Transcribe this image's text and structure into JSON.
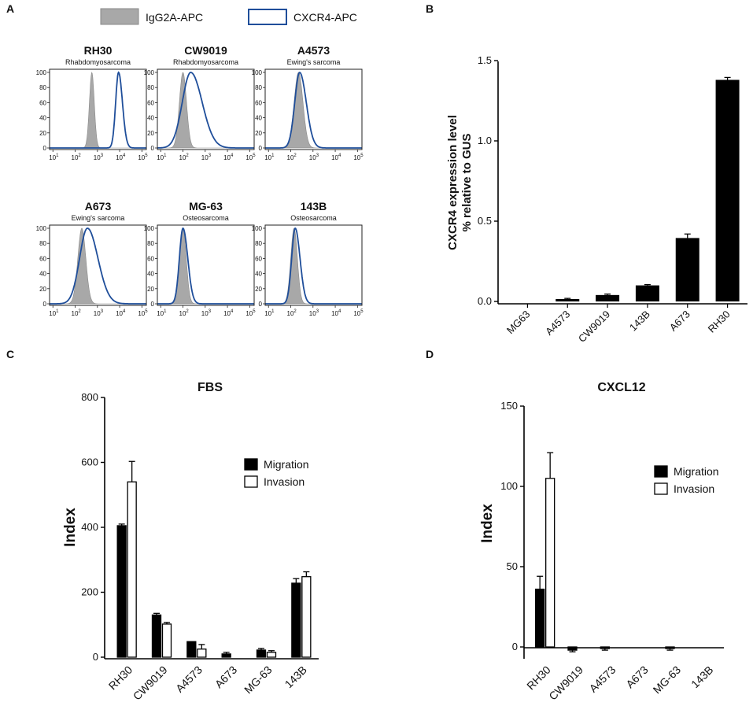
{
  "panel_letters": [
    "A",
    "B",
    "C",
    "D"
  ],
  "colors": {
    "isotype": "#a8a8a8",
    "cxcr4": "#1f4e9a",
    "bar_dark": "#000000",
    "bar_light": "#ffffff"
  },
  "panelA": {
    "legend": [
      {
        "label": "IgG2A-APC",
        "style": "filled-grey"
      },
      {
        "label": "CXCR4-APC",
        "style": "outline-blue"
      }
    ],
    "y_ticks": [
      "0",
      "20",
      "40",
      "60",
      "80",
      "100"
    ],
    "x_tick_base": "10",
    "x_tick_exps": [
      "1",
      "2",
      "3",
      "4",
      "5"
    ],
    "histograms": [
      {
        "title": "RH30",
        "subtitle": "Rhabdomyosarcoma",
        "iso_peak": 2.75,
        "iso_width": 0.11,
        "cx_peak": 3.95,
        "cx_width": 0.13
      },
      {
        "title": "CW9019",
        "subtitle": "Rhabdomyosarcoma",
        "iso_peak": 2.0,
        "iso_width": 0.16,
        "cx_peak": 2.35,
        "cx_width": 0.38
      },
      {
        "title": "A4573",
        "subtitle": "Ewing's sarcoma",
        "iso_peak": 2.35,
        "iso_width": 0.2,
        "cx_peak": 2.4,
        "cx_width": 0.22
      },
      {
        "title": "A673",
        "subtitle": "Ewing's sarcoma",
        "iso_peak": 2.3,
        "iso_width": 0.18,
        "cx_peak": 2.55,
        "cx_width": 0.35
      },
      {
        "title": "MG-63",
        "subtitle": "Osteosarcoma",
        "iso_peak": 2.0,
        "iso_width": 0.15,
        "cx_peak": 2.0,
        "cx_width": 0.16
      },
      {
        "title": "143B",
        "subtitle": "Osteosarcoma",
        "iso_peak": 2.15,
        "iso_width": 0.15,
        "cx_peak": 2.2,
        "cx_width": 0.16
      }
    ]
  },
  "chart_data": [
    {
      "panel": "B",
      "type": "bar",
      "title": "",
      "ylabel_lines": [
        "CXCR4 expression level",
        "% relative to GUS"
      ],
      "categories": [
        "MG63",
        "A4573",
        "CW9019",
        "143B",
        "A673",
        "RH30"
      ],
      "values": [
        0.0,
        0.015,
        0.04,
        0.1,
        0.395,
        1.38
      ],
      "errors": [
        0.0,
        0.004,
        0.006,
        0.005,
        0.025,
        0.015
      ],
      "ylim": [
        0,
        1.5
      ],
      "yticks": [
        "0.0",
        "0.5",
        "1.0",
        "1.5"
      ]
    },
    {
      "panel": "C",
      "type": "bar",
      "title": "FBS",
      "ylabel": "Index",
      "categories": [
        "RH30",
        "CW9019",
        "A4573",
        "A673",
        "MG-63",
        "143B"
      ],
      "series": [
        {
          "name": "Migration",
          "values": [
            405,
            130,
            48,
            10,
            22,
            228
          ],
          "errors": [
            5,
            5,
            0,
            5,
            5,
            14
          ]
        },
        {
          "name": "Invasion",
          "values": [
            540,
            102,
            25,
            0,
            15,
            248
          ],
          "errors": [
            63,
            5,
            14,
            0,
            5,
            15
          ]
        }
      ],
      "ylim": [
        0,
        800
      ],
      "yticks": [
        "0",
        "200",
        "400",
        "600",
        "800"
      ]
    },
    {
      "panel": "D",
      "type": "bar",
      "title": "CXCL12",
      "ylabel": "Index",
      "categories": [
        "RH30",
        "CW9019",
        "A4573",
        "A673",
        "MG-63",
        "143B"
      ],
      "series": [
        {
          "name": "Migration",
          "values": [
            36,
            -2,
            -1,
            0,
            -1,
            0
          ],
          "errors": [
            8,
            1,
            1,
            0,
            1,
            0
          ]
        },
        {
          "name": "Invasion",
          "values": [
            105,
            0,
            0,
            0,
            0,
            0
          ],
          "errors": [
            16,
            0,
            0,
            0,
            0,
            0
          ]
        }
      ],
      "ylim": [
        -5,
        150
      ],
      "yticks": [
        "0",
        "50",
        "100",
        "150"
      ]
    }
  ]
}
